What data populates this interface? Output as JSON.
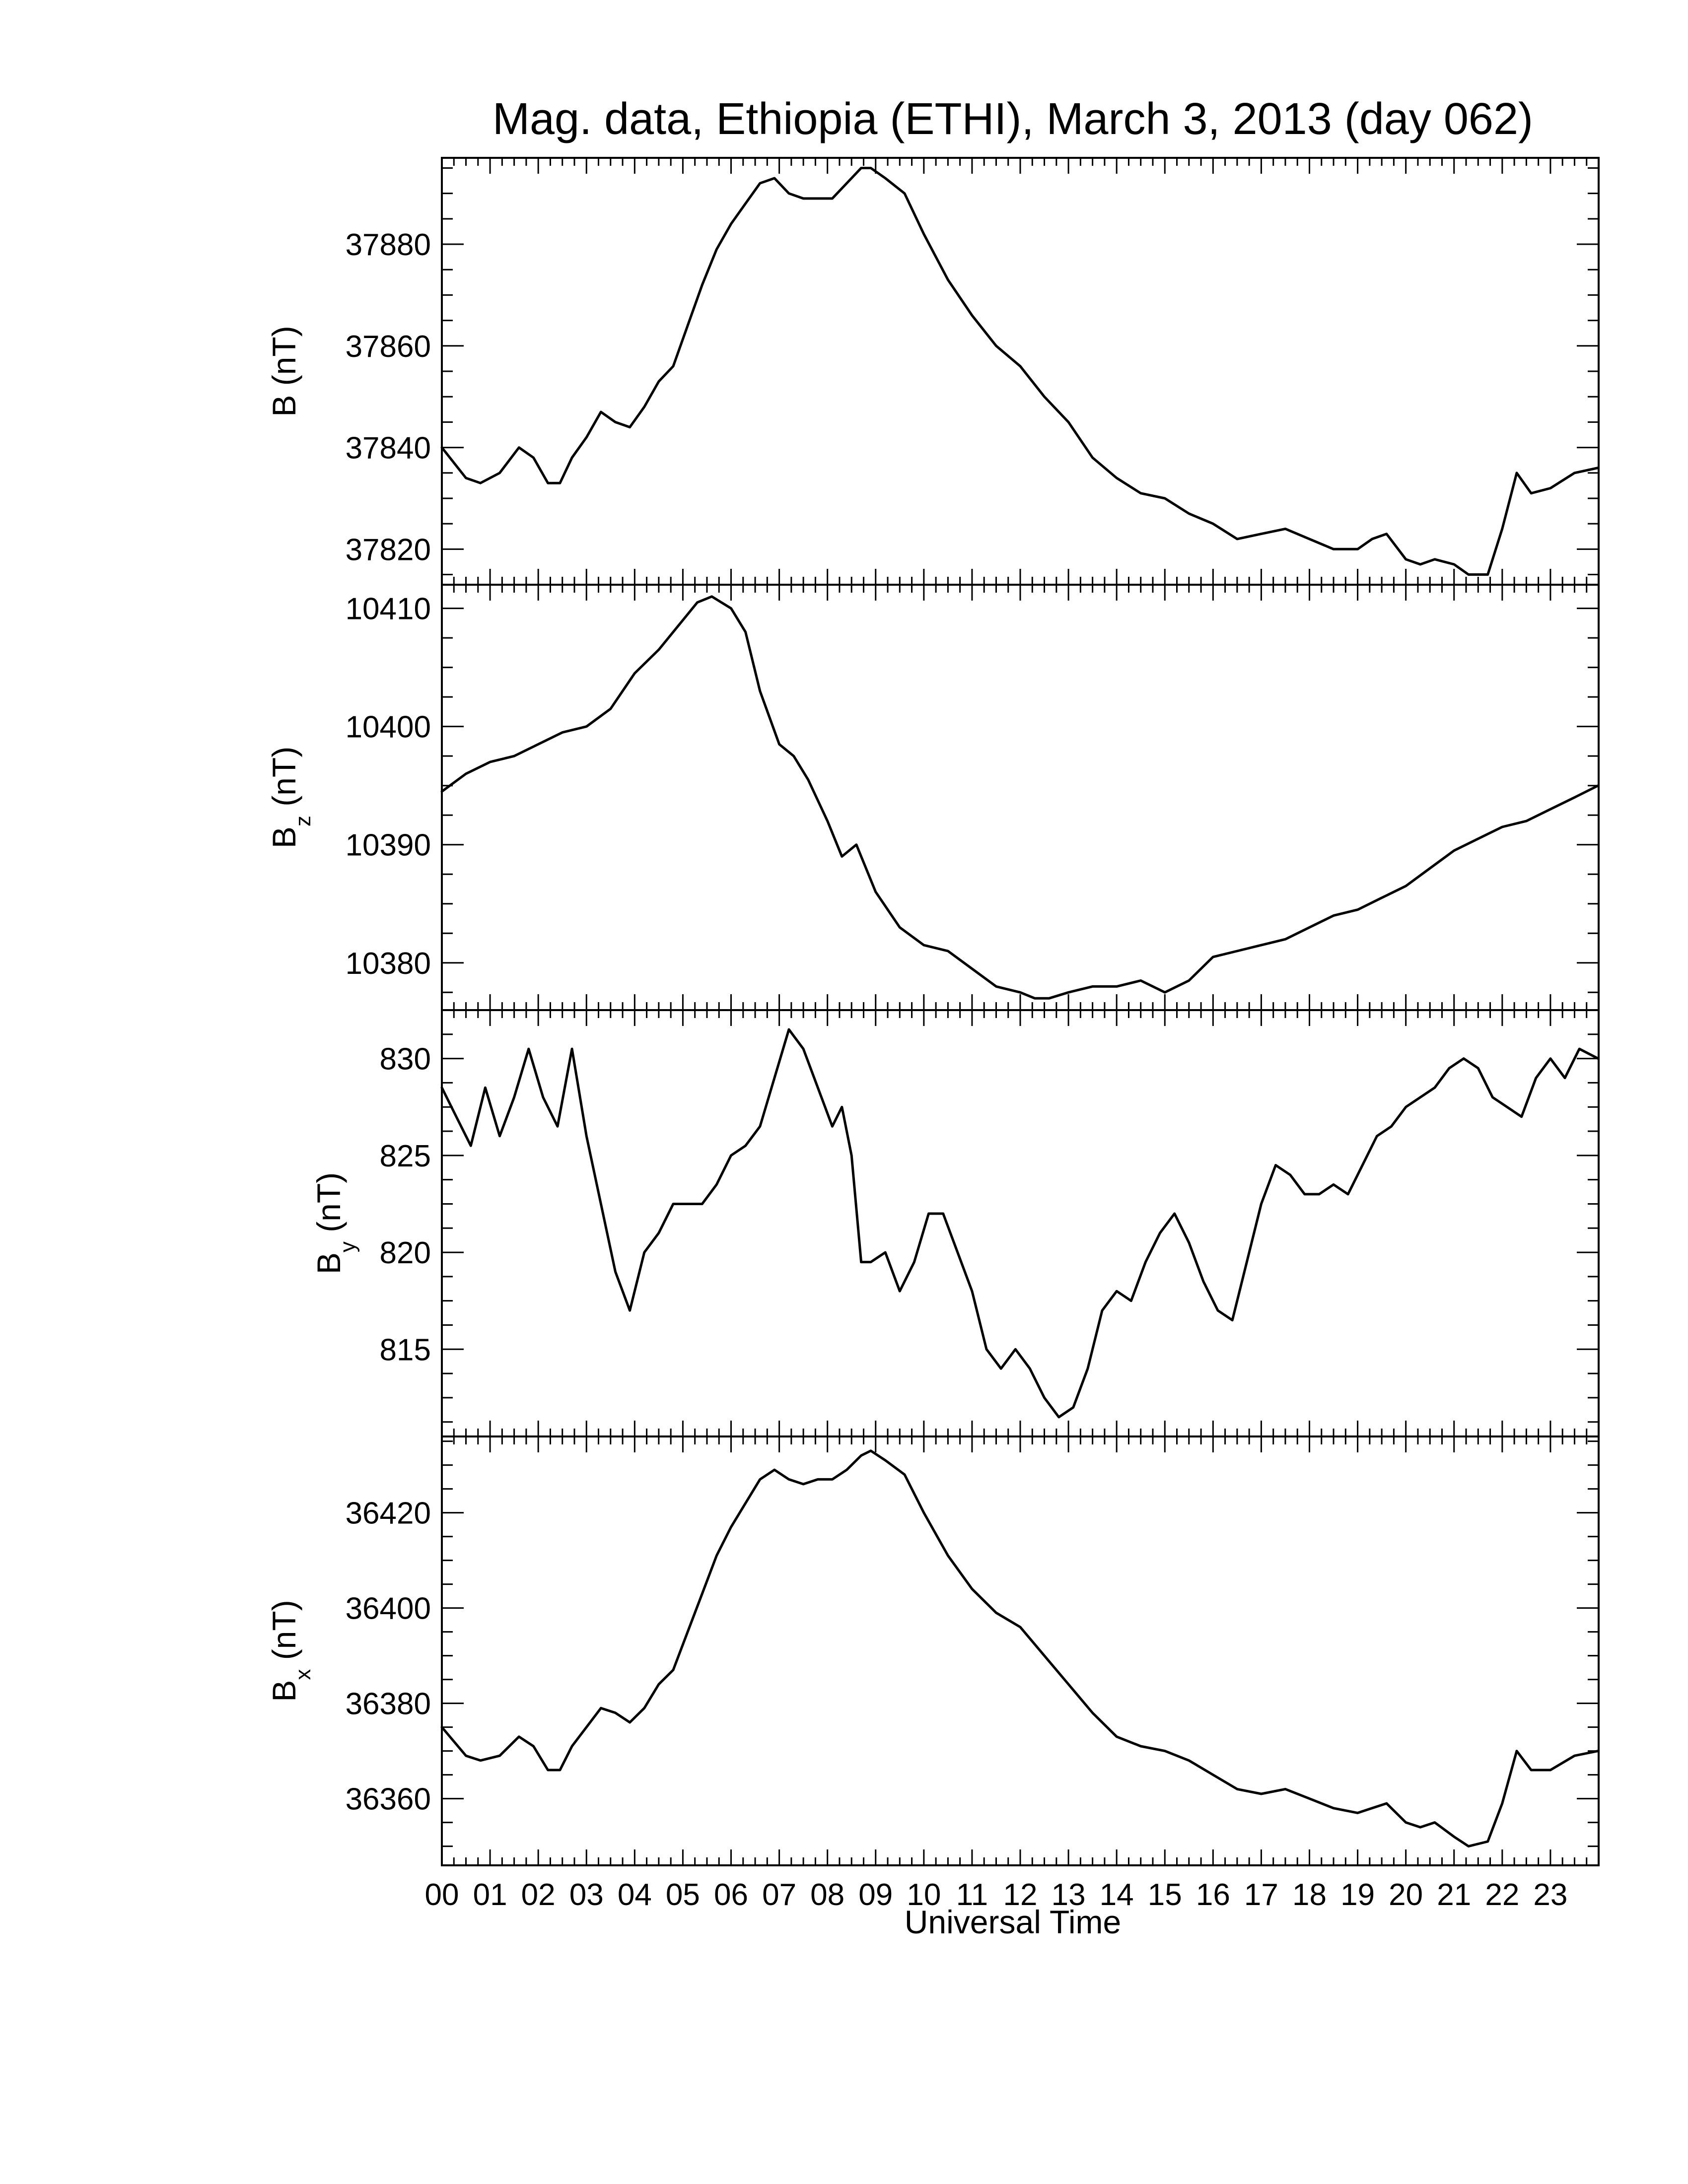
{
  "title": "Mag. data, Ethiopia (ETHI), March 3, 2013 (day 062)",
  "chart_data": [
    {
      "type": "line",
      "ylabel": "B (nT)",
      "ylabel_main": "B",
      "ylabel_sub": "",
      "ylabel_unit": "(nT)",
      "ylim": [
        37813,
        37897
      ],
      "yticks": [
        37820,
        37840,
        37860,
        37880
      ],
      "color": "#000000",
      "x": [
        0.0,
        0.5,
        0.8,
        1.2,
        1.6,
        1.9,
        2.2,
        2.45,
        2.7,
        3.0,
        3.3,
        3.6,
        3.9,
        4.2,
        4.5,
        4.8,
        5.1,
        5.4,
        5.7,
        6.0,
        6.3,
        6.6,
        6.9,
        7.2,
        7.5,
        7.8,
        8.1,
        8.4,
        8.7,
        8.9,
        9.2,
        9.6,
        10.0,
        10.5,
        11.0,
        11.5,
        12.0,
        12.5,
        13.0,
        13.5,
        14.0,
        14.5,
        15.0,
        15.5,
        16.0,
        16.5,
        17.0,
        17.5,
        18.0,
        18.5,
        19.0,
        19.3,
        19.6,
        20.0,
        20.3,
        20.6,
        21.0,
        21.3,
        21.7,
        22.0,
        22.3,
        22.6,
        23.0,
        23.5,
        23.99
      ],
      "values": [
        37840,
        37834,
        37833,
        37835,
        37840,
        37838,
        37833,
        37833,
        37838,
        37842,
        37847,
        37845,
        37844,
        37848,
        37853,
        37856,
        37864,
        37872,
        37879,
        37884,
        37888,
        37892,
        37893,
        37890,
        37889,
        37889,
        37889,
        37892,
        37895,
        37895,
        37893,
        37890,
        37882,
        37873,
        37866,
        37860,
        37856,
        37850,
        37845,
        37838,
        37834,
        37831,
        37830,
        37827,
        37825,
        37822,
        37823,
        37824,
        37822,
        37820,
        37820,
        37822,
        37823,
        37818,
        37817,
        37818,
        37817,
        37815,
        37815,
        37824,
        37835,
        37831,
        37832,
        37835,
        37836
      ]
    },
    {
      "type": "line",
      "ylabel": "Bz (nT)",
      "ylabel_main": "B",
      "ylabel_sub": "z",
      "ylabel_unit": "(nT)",
      "ylim": [
        10376,
        10412
      ],
      "yticks": [
        10380,
        10390,
        10400,
        10410
      ],
      "color": "#000000",
      "x": [
        0.0,
        0.5,
        1.0,
        1.5,
        2.0,
        2.5,
        3.0,
        3.5,
        4.0,
        4.5,
        5.0,
        5.3,
        5.6,
        6.0,
        6.3,
        6.6,
        7.0,
        7.3,
        7.6,
        8.0,
        8.3,
        8.6,
        9.0,
        9.5,
        10.0,
        10.5,
        11.0,
        11.5,
        12.0,
        12.3,
        12.6,
        13.0,
        13.5,
        14.0,
        14.5,
        15.0,
        15.5,
        16.0,
        16.5,
        17.0,
        17.5,
        18.0,
        18.5,
        19.0,
        19.5,
        20.0,
        20.5,
        21.0,
        21.5,
        22.0,
        22.5,
        23.0,
        23.5,
        23.99
      ],
      "values": [
        10394.5,
        10396,
        10397,
        10397.5,
        10398.5,
        10399.5,
        10400,
        10401.5,
        10404.5,
        10406.5,
        10409,
        10410.5,
        10411,
        10410,
        10408,
        10403,
        10398.5,
        10397.5,
        10395.5,
        10392,
        10389,
        10390,
        10386,
        10383,
        10381.5,
        10381,
        10379.5,
        10378,
        10377.5,
        10377,
        10377,
        10377.5,
        10378,
        10378,
        10378.5,
        10377.5,
        10378.5,
        10380.5,
        10381,
        10381.5,
        10382,
        10383,
        10384,
        10384.5,
        10385.5,
        10386.5,
        10388,
        10389.5,
        10390.5,
        10391.5,
        10392,
        10393,
        10394,
        10395
      ]
    },
    {
      "type": "line",
      "ylabel": "By (nT)",
      "ylabel_main": "B",
      "ylabel_sub": "y",
      "ylabel_unit": "(nT)",
      "ylim": [
        810.5,
        832.5
      ],
      "yticks": [
        815,
        820,
        825,
        830
      ],
      "color": "#000000",
      "x": [
        0.0,
        0.3,
        0.6,
        0.9,
        1.2,
        1.5,
        1.8,
        2.1,
        2.4,
        2.7,
        3.0,
        3.3,
        3.6,
        3.9,
        4.2,
        4.5,
        4.8,
        5.1,
        5.4,
        5.7,
        6.0,
        6.3,
        6.6,
        6.9,
        7.2,
        7.5,
        7.8,
        8.1,
        8.3,
        8.5,
        8.7,
        8.9,
        9.2,
        9.5,
        9.8,
        10.1,
        10.4,
        10.7,
        11.0,
        11.3,
        11.6,
        11.9,
        12.2,
        12.5,
        12.8,
        13.1,
        13.4,
        13.7,
        14.0,
        14.3,
        14.6,
        14.9,
        15.2,
        15.5,
        15.8,
        16.1,
        16.4,
        16.7,
        17.0,
        17.3,
        17.6,
        17.9,
        18.2,
        18.5,
        18.8,
        19.1,
        19.4,
        19.7,
        20.0,
        20.3,
        20.6,
        20.9,
        21.2,
        21.5,
        21.8,
        22.1,
        22.4,
        22.7,
        23.0,
        23.3,
        23.6,
        23.99
      ],
      "values": [
        828.5,
        827,
        825.5,
        828.5,
        826,
        828,
        830.5,
        828,
        826.5,
        830.5,
        826,
        822.5,
        819,
        817,
        820,
        821,
        822.5,
        822.5,
        822.5,
        823.5,
        825,
        825.5,
        826.5,
        829,
        831.5,
        830.5,
        828.5,
        826.5,
        827.5,
        825,
        819.5,
        819.5,
        820,
        818,
        819.5,
        822,
        822,
        820,
        818,
        815,
        814,
        815,
        814,
        812.5,
        811.5,
        812,
        814,
        817,
        818,
        817.5,
        819.5,
        821,
        822,
        820.5,
        818.5,
        817,
        816.5,
        819.5,
        822.5,
        824.5,
        824,
        823,
        823,
        823.5,
        823,
        824.5,
        826,
        826.5,
        827.5,
        828,
        828.5,
        829.5,
        830,
        829.5,
        828,
        827.5,
        827,
        829,
        830,
        829,
        830.5,
        830
      ]
    },
    {
      "type": "line",
      "ylabel": "Bx (nT)",
      "ylabel_main": "B",
      "ylabel_sub": "x",
      "ylabel_unit": "(nT)",
      "ylim": [
        36346,
        36436
      ],
      "yticks": [
        36360,
        36380,
        36400,
        36420
      ],
      "color": "#000000",
      "x": [
        0.0,
        0.5,
        0.8,
        1.2,
        1.6,
        1.9,
        2.2,
        2.45,
        2.7,
        3.0,
        3.3,
        3.6,
        3.9,
        4.2,
        4.5,
        4.8,
        5.1,
        5.4,
        5.7,
        6.0,
        6.3,
        6.6,
        6.9,
        7.2,
        7.5,
        7.8,
        8.1,
        8.4,
        8.7,
        8.9,
        9.2,
        9.6,
        10.0,
        10.5,
        11.0,
        11.5,
        12.0,
        12.5,
        13.0,
        13.5,
        14.0,
        14.5,
        15.0,
        15.5,
        16.0,
        16.5,
        17.0,
        17.5,
        18.0,
        18.5,
        19.0,
        19.3,
        19.6,
        20.0,
        20.3,
        20.6,
        21.0,
        21.3,
        21.7,
        22.0,
        22.3,
        22.6,
        23.0,
        23.5,
        23.99
      ],
      "values": [
        36375,
        36369,
        36368,
        36369,
        36373,
        36371,
        36366,
        36366,
        36371,
        36375,
        36379,
        36378,
        36376,
        36379,
        36384,
        36387,
        36395,
        36403,
        36411,
        36417,
        36422,
        36427,
        36429,
        36427,
        36426,
        36427,
        36427,
        36429,
        36432,
        36433,
        36431,
        36428,
        36420,
        36411,
        36404,
        36399,
        36396,
        36390,
        36384,
        36378,
        36373,
        36371,
        36370,
        36368,
        36365,
        36362,
        36361,
        36362,
        36360,
        36358,
        36357,
        36358,
        36359,
        36355,
        36354,
        36355,
        36352,
        36350,
        36351,
        36359,
        36370,
        36366,
        36366,
        36369,
        36370
      ]
    }
  ],
  "x_axis": {
    "label": "Universal Time",
    "xlim": [
      0,
      24
    ],
    "tick_labels": [
      "00",
      "01",
      "02",
      "03",
      "04",
      "05",
      "06",
      "07",
      "08",
      "09",
      "10",
      "11",
      "12",
      "13",
      "14",
      "15",
      "16",
      "17",
      "18",
      "19",
      "20",
      "21",
      "22",
      "23"
    ]
  }
}
